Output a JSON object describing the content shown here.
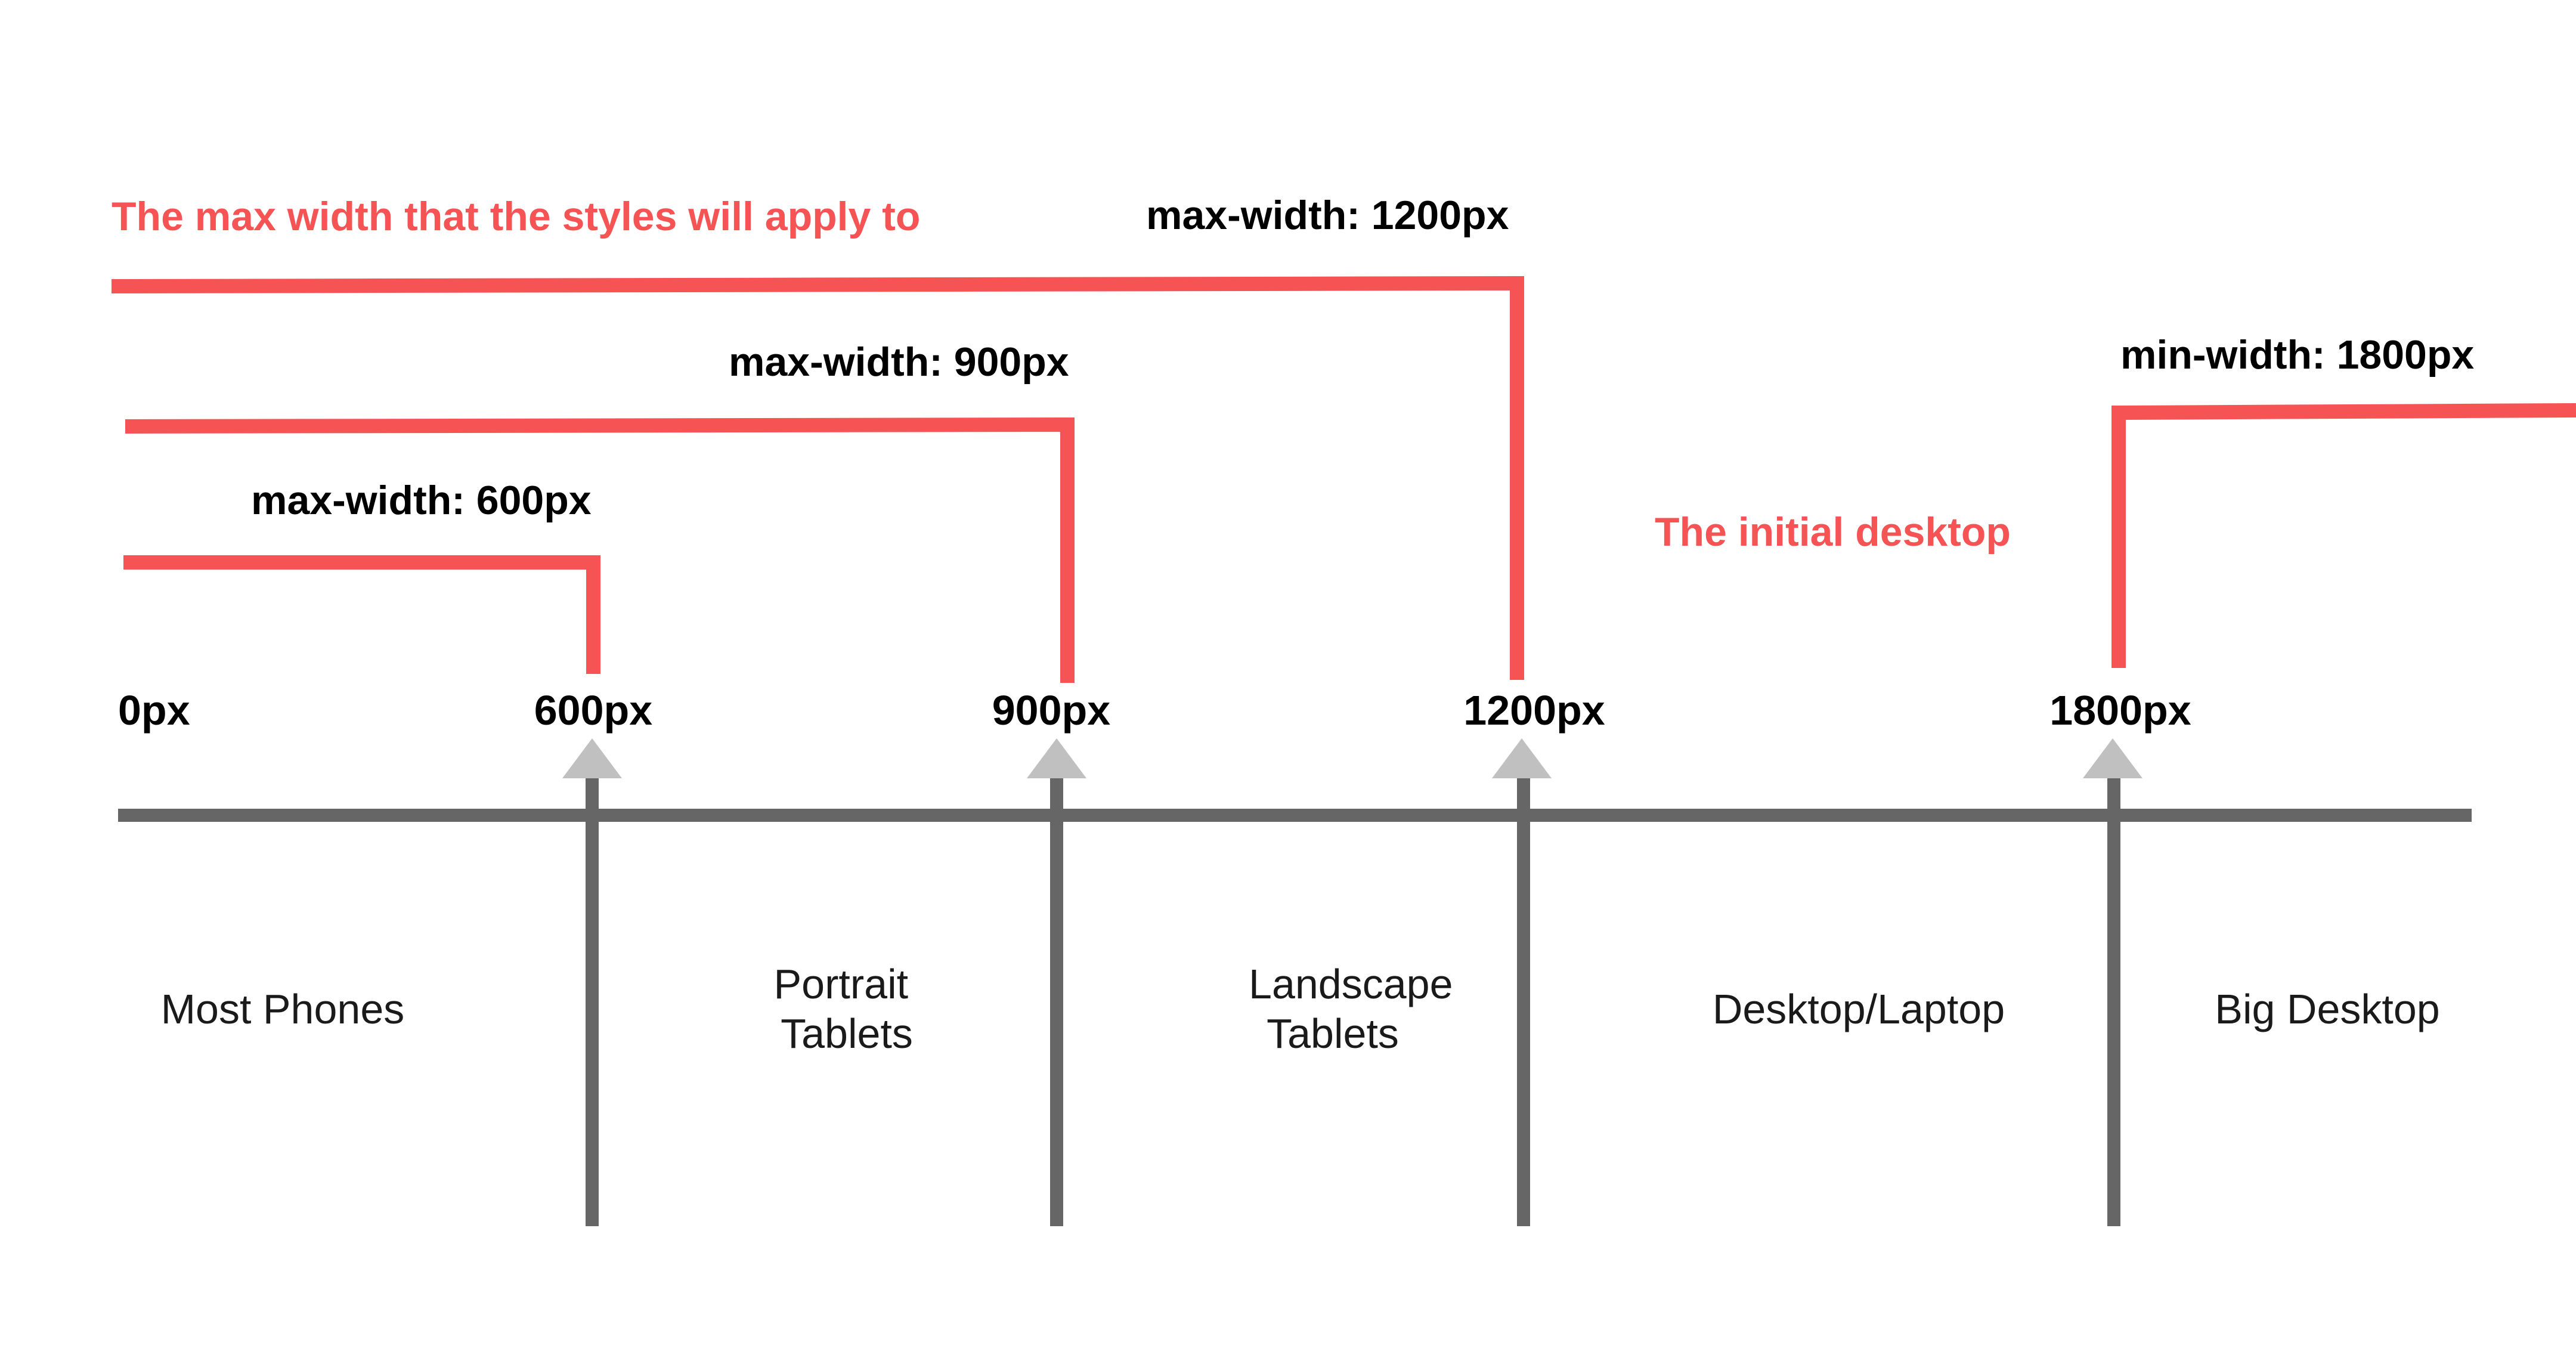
{
  "colors": {
    "accent": "#f65354",
    "axis": "#666666",
    "marker": "#c0c0c0",
    "text": "#000000"
  },
  "annotations": {
    "max_width_heading": "The max width that the styles will apply to",
    "initial_desktop": "The initial desktop"
  },
  "queries": {
    "max_1200": "max-width: 1200px",
    "max_900": "max-width: 900px",
    "max_600": "max-width: 600px",
    "min_1800": "min-width: 1800px"
  },
  "breakpoints": {
    "bp_0": "0px",
    "bp_600": "600px",
    "bp_900": "900px",
    "bp_1200": "1200px",
    "bp_1800": "1800px"
  },
  "categories": {
    "most_phones": [
      "Most Phones"
    ],
    "portrait_tablets": [
      "Portrait",
      "Tablets"
    ],
    "landscape_tablets": [
      "Landscape",
      "Tablets"
    ],
    "desktop_laptop": [
      "Desktop/Laptop"
    ],
    "big_desktop": [
      "Big Desktop"
    ]
  }
}
